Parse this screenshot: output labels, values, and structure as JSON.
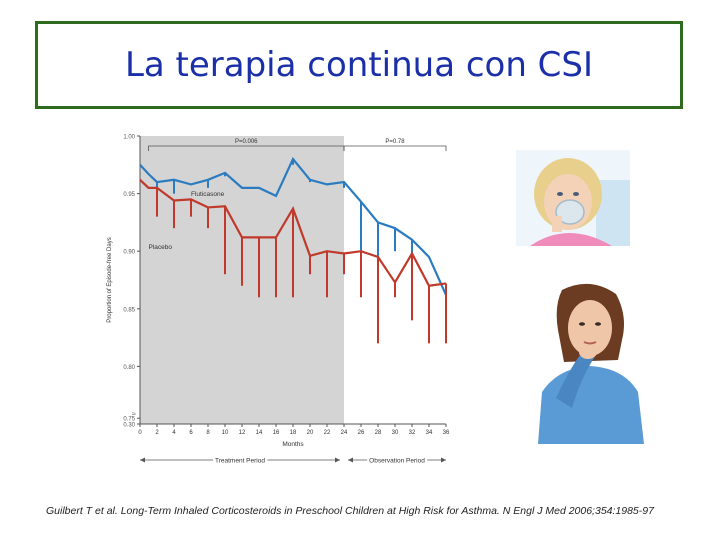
{
  "slide": {
    "title": "La terapia continua con CSI",
    "citation": "Guilbert T et al. Long-Term Inhaled Corticosteroids in Preschool Children at High Risk for Asthma. N Engl J Med 2006;354:1985-97"
  },
  "images": {
    "child": "child-with-inhaler-mask-photo",
    "woman": "woman-thinking-photo"
  },
  "chart_data": {
    "type": "line",
    "xlabel": "Months",
    "ylabel": "Proportion of Episode-free Days",
    "x": [
      0,
      1,
      2,
      4,
      6,
      8,
      10,
      12,
      14,
      16,
      18,
      20,
      22,
      24,
      26,
      28,
      30,
      32,
      34,
      36
    ],
    "x_ticks": [
      "0",
      "2",
      "4",
      "6",
      "8",
      "10",
      "12",
      "14",
      "16",
      "18",
      "20",
      "22",
      "24",
      "26",
      "28",
      "30",
      "32",
      "34",
      "36"
    ],
    "y_ticks": [
      "0.30",
      "0.75",
      "0.80",
      "0.85",
      "0.90",
      "0.95",
      "1.00"
    ],
    "ylim": [
      0.75,
      1.0
    ],
    "axis_break": true,
    "grid": false,
    "series": [
      {
        "name": "Fluticasone",
        "color": "#2a7bbf",
        "values": [
          0.975,
          0.967,
          0.96,
          0.962,
          0.958,
          0.962,
          0.968,
          0.955,
          0.955,
          0.948,
          0.98,
          0.962,
          0.958,
          0.96,
          0.943,
          0.925,
          0.92,
          0.91,
          0.895,
          0.862
        ],
        "ci_low": [
          0.975,
          0.967,
          0.955,
          0.95,
          0.96,
          0.955,
          0.965,
          0.955,
          0.955,
          0.955,
          0.975,
          0.96,
          0.958,
          0.955,
          0.89,
          0.89,
          0.9,
          0.895,
          0.895,
          0.845
        ]
      },
      {
        "name": "Placebo",
        "color": "#c0392b",
        "values": [
          0.962,
          0.955,
          0.955,
          0.944,
          0.945,
          0.938,
          0.939,
          0.912,
          0.912,
          0.912,
          0.937,
          0.896,
          0.9,
          0.898,
          0.9,
          0.895,
          0.873,
          0.898,
          0.87,
          0.872
        ],
        "ci_low": [
          0.962,
          0.955,
          0.93,
          0.92,
          0.93,
          0.92,
          0.88,
          0.87,
          0.86,
          0.86,
          0.86,
          0.88,
          0.86,
          0.88,
          0.86,
          0.82,
          0.86,
          0.84,
          0.82,
          0.82
        ]
      }
    ],
    "p_values": [
      {
        "label": "P=0.006",
        "from": 1,
        "to": 24
      },
      {
        "label": "P=0.78",
        "from": 24,
        "to": 36
      }
    ],
    "periods": [
      {
        "label": "Treatment Period",
        "from": 0,
        "to": 24,
        "shaded": true
      },
      {
        "label": "Observation Period",
        "from": 24,
        "to": 36,
        "shaded": false
      }
    ]
  }
}
